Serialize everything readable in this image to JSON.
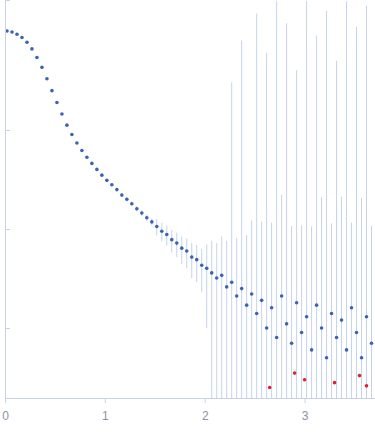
{
  "chart_data": {
    "type": "scatter",
    "log": "y",
    "tick_labels": "x",
    "marker": "circle",
    "xlim": [
      0,
      3.705
    ],
    "xticks": [
      0,
      1,
      2,
      3
    ],
    "ylim": [
      0.000196,
      2.06
    ],
    "yticks": [
      0.001,
      0.01,
      0.1
    ],
    "series": [
      {
        "color": "#3a62b5",
        "x": [
          0.02,
          0.07,
          0.12,
          0.17,
          0.22,
          0.27,
          0.32,
          0.37,
          0.42,
          0.47,
          0.52,
          0.57,
          0.62,
          0.67,
          0.72,
          0.77,
          0.82,
          0.87,
          0.92,
          0.97,
          1.02,
          1.07,
          1.12,
          1.17,
          1.22,
          1.27,
          1.32,
          1.37,
          1.42,
          1.47,
          1.52,
          1.57,
          1.62,
          1.67,
          1.72,
          1.77,
          1.82,
          1.87,
          1.92,
          1.97,
          2.02,
          2.07,
          2.12,
          2.17,
          2.22,
          2.27,
          2.32,
          2.37,
          2.42,
          2.47,
          2.52,
          2.57,
          2.62,
          2.67,
          2.72,
          2.77,
          2.82,
          2.87,
          2.92,
          2.97,
          3.02,
          3.07,
          3.12,
          3.17,
          3.22,
          3.27,
          3.32,
          3.37,
          3.42,
          3.47,
          3.52,
          3.57,
          3.62,
          3.67
        ],
        "values": [
          1.0,
          0.98,
          0.93,
          0.86,
          0.77,
          0.66,
          0.54,
          0.43,
          0.33,
          0.25,
          0.19,
          0.145,
          0.112,
          0.09,
          0.074,
          0.062,
          0.053,
          0.046,
          0.04,
          0.035,
          0.031,
          0.028,
          0.025,
          0.022,
          0.02,
          0.018,
          0.016,
          0.0145,
          0.013,
          0.0118,
          0.0106,
          0.0095,
          0.0088,
          0.0078,
          0.0072,
          0.0064,
          0.006,
          0.0052,
          0.0049,
          0.0043,
          0.004,
          0.0036,
          0.0032,
          0.0034,
          0.0026,
          0.0029,
          0.0021,
          0.0025,
          0.0017,
          0.0022,
          0.0014,
          0.0019,
          0.001,
          0.0016,
          0.0008,
          0.0021,
          0.0011,
          0.0007,
          0.0018,
          0.0009,
          0.0013,
          0.0006,
          0.0017,
          0.001,
          0.0005,
          0.0014,
          0.0008,
          0.0012,
          0.0006,
          0.0016,
          0.0009,
          0.0005,
          0.0013,
          0.0007
        ],
        "error": [
          0.005,
          0.005,
          0.005,
          0.004,
          0.004,
          0.003,
          0.003,
          0.003,
          0.002,
          0.002,
          0.002,
          0.001,
          0.001,
          0.001,
          0.001,
          0.001,
          0.001,
          0.001,
          0.001,
          0.001,
          0.001,
          0.001,
          0.001,
          0.001,
          0.001,
          0.001,
          0.001,
          0.001,
          0.001,
          0.001,
          0.002,
          0.002,
          0.002,
          0.002,
          0.002,
          0.002,
          0.002,
          0.002,
          0.002,
          0.002,
          0.003,
          0.004,
          0.004,
          0.005,
          0.005,
          0.3,
          0.006,
          0.8,
          0.007,
          0.01,
          1.5,
          0.01,
          0.6,
          0.01,
          2,
          0.02,
          1.2,
          0.01,
          0.4,
          0.01,
          2,
          0.01,
          0.9,
          0.02,
          1.6,
          0.01,
          0.5,
          0.02,
          2,
          0.01,
          1.1,
          0.02,
          1.8,
          0.01
        ]
      },
      {
        "color": "#e0202a",
        "x": [
          2.65,
          2.9,
          3.0,
          3.3,
          3.55,
          3.62
        ],
        "values": [
          0.00025,
          0.00035,
          0.0003,
          0.00028,
          0.00033,
          0.00026
        ]
      }
    ]
  }
}
